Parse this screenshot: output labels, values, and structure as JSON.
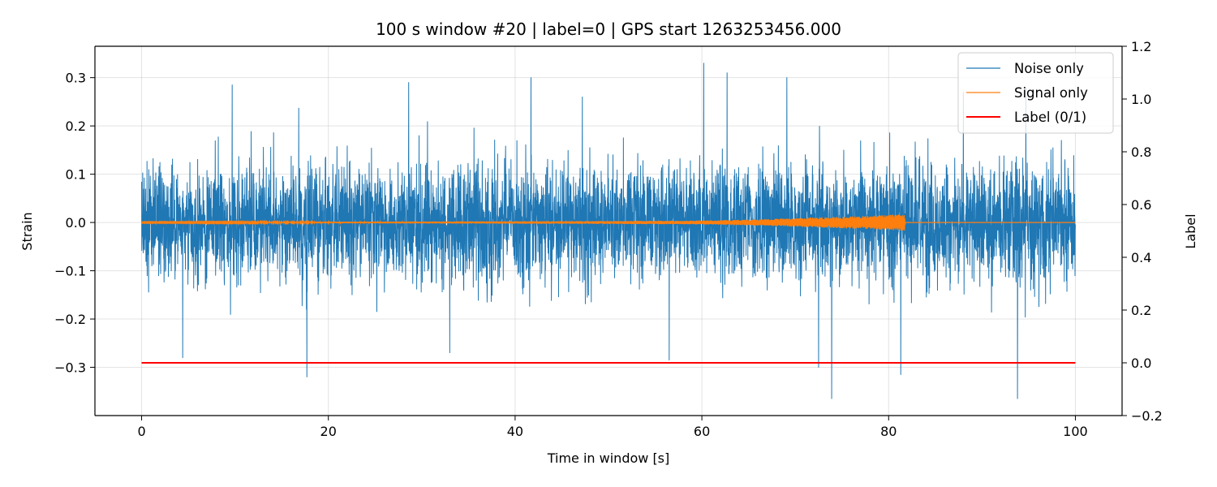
{
  "chart_data": {
    "type": "line",
    "title": "100 s window #20 | label=0 | GPS start 1263253456.000",
    "xlabel": "Time in window [s]",
    "ylabel": "Strain",
    "y2label": "Label",
    "xlim": [
      -5,
      105
    ],
    "ylim": [
      -0.4,
      0.365
    ],
    "y2lim": [
      -0.2,
      1.2
    ],
    "xticks": [
      0,
      20,
      40,
      60,
      80,
      100
    ],
    "xtick_labels": [
      "0",
      "20",
      "40",
      "60",
      "80",
      "100"
    ],
    "yticks": [
      -0.3,
      -0.2,
      -0.1,
      0.0,
      0.1,
      0.2,
      0.3
    ],
    "ytick_labels": [
      "−0.3",
      "−0.2",
      "−0.1",
      "0.0",
      "0.1",
      "0.2",
      "0.3"
    ],
    "y2ticks": [
      -0.2,
      0.0,
      0.2,
      0.4,
      0.6,
      0.8,
      1.0,
      1.2
    ],
    "y2tick_labels": [
      "−0.2",
      "0.0",
      "0.2",
      "0.4",
      "0.6",
      "0.8",
      "1.0",
      "1.2"
    ],
    "grid": true,
    "legend_position": "top-right",
    "series": [
      {
        "name": "Noise only",
        "color": "#1f77b4",
        "axis": "left",
        "x_range": [
          0,
          100
        ],
        "typical_amplitude": 0.06,
        "peak_range": [
          -0.365,
          0.33
        ],
        "spikes": [
          {
            "x": 9.7,
            "y": 0.285
          },
          {
            "x": 17.7,
            "y": -0.32
          },
          {
            "x": 28.6,
            "y": 0.29
          },
          {
            "x": 41.7,
            "y": 0.3
          },
          {
            "x": 47.2,
            "y": 0.26
          },
          {
            "x": 56.5,
            "y": -0.285
          },
          {
            "x": 60.2,
            "y": 0.33
          },
          {
            "x": 62.7,
            "y": 0.31
          },
          {
            "x": 69.1,
            "y": 0.3
          },
          {
            "x": 72.5,
            "y": -0.3
          },
          {
            "x": 73.9,
            "y": -0.365
          },
          {
            "x": 81.3,
            "y": -0.315
          },
          {
            "x": 88.0,
            "y": 0.27
          },
          {
            "x": 93.8,
            "y": -0.365
          },
          {
            "x": 94.7,
            "y": 0.28
          },
          {
            "x": 4.4,
            "y": -0.28
          },
          {
            "x": 33.0,
            "y": -0.27
          }
        ]
      },
      {
        "name": "Signal only",
        "color": "#ff7f0e",
        "axis": "left",
        "x_range": [
          0,
          100
        ],
        "envelope": [
          {
            "x": 0,
            "y": 0.001
          },
          {
            "x": 30,
            "y": 0.002
          },
          {
            "x": 50,
            "y": 0.003
          },
          {
            "x": 60,
            "y": 0.004
          },
          {
            "x": 65,
            "y": 0.006
          },
          {
            "x": 70,
            "y": 0.009
          },
          {
            "x": 75,
            "y": 0.012
          },
          {
            "x": 80,
            "y": 0.016
          },
          {
            "x": 81.7,
            "y": 0.017
          },
          {
            "x": 81.8,
            "y": 0.0
          },
          {
            "x": 100,
            "y": 0.0
          }
        ]
      },
      {
        "name": "Label (0/1)",
        "color": "#ff0000",
        "axis": "right",
        "x": [
          0,
          100
        ],
        "values": [
          0,
          0
        ]
      }
    ]
  }
}
